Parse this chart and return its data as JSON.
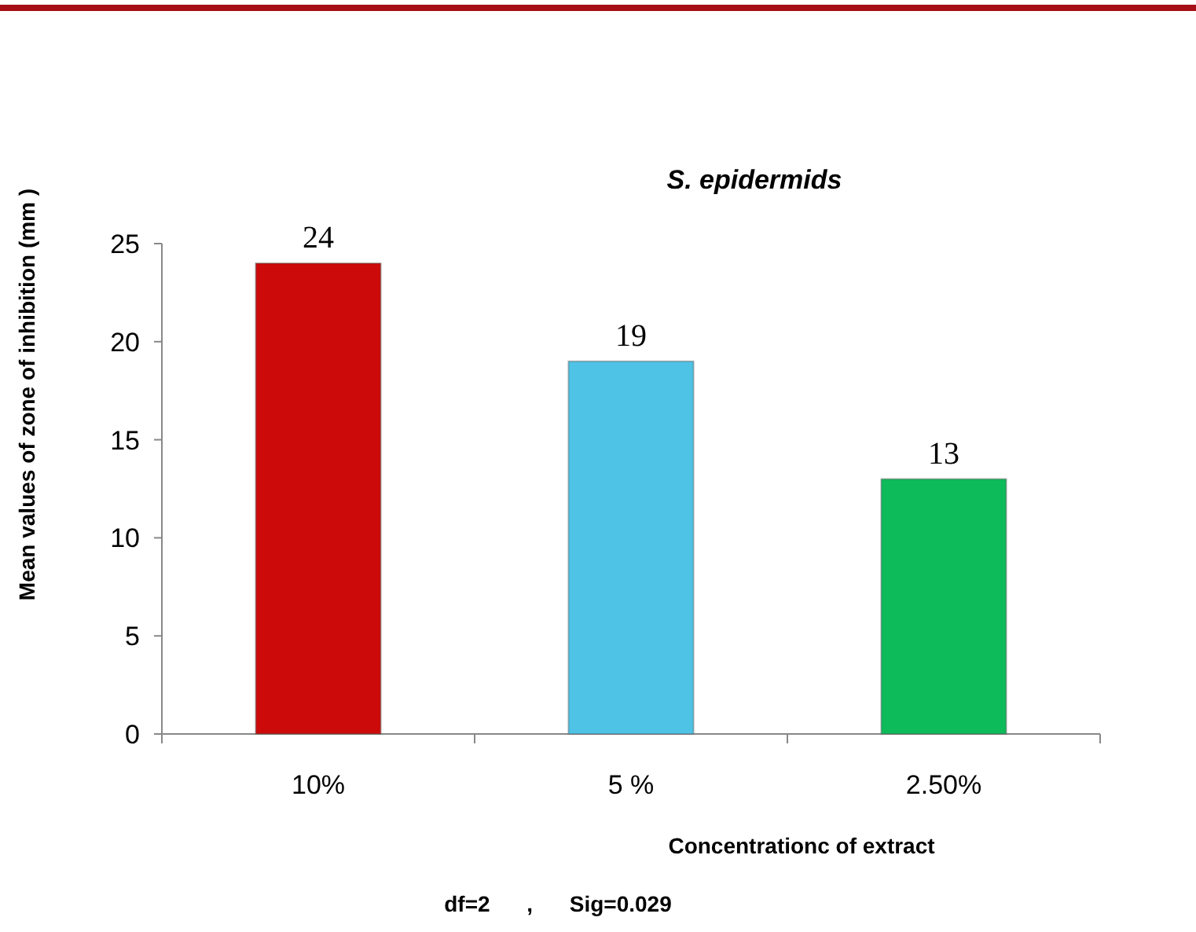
{
  "chart_data": {
    "type": "bar",
    "title": "S. epidermids",
    "xlabel": "Concentrationc of extract",
    "ylabel": "Mean values of zone of inhibition (mm )",
    "categories": [
      "10%",
      "5 %",
      "2.50%"
    ],
    "values": [
      24,
      19,
      13
    ],
    "colors": [
      "#cc0a0a",
      "#4ec3e6",
      "#0dbb5a"
    ],
    "ylim": [
      0,
      25
    ],
    "yticks": [
      0,
      5,
      10,
      15,
      20,
      25
    ],
    "data_labels": true,
    "grid": false,
    "annotations": [
      "df=2      ,      Sig=0.029"
    ]
  }
}
